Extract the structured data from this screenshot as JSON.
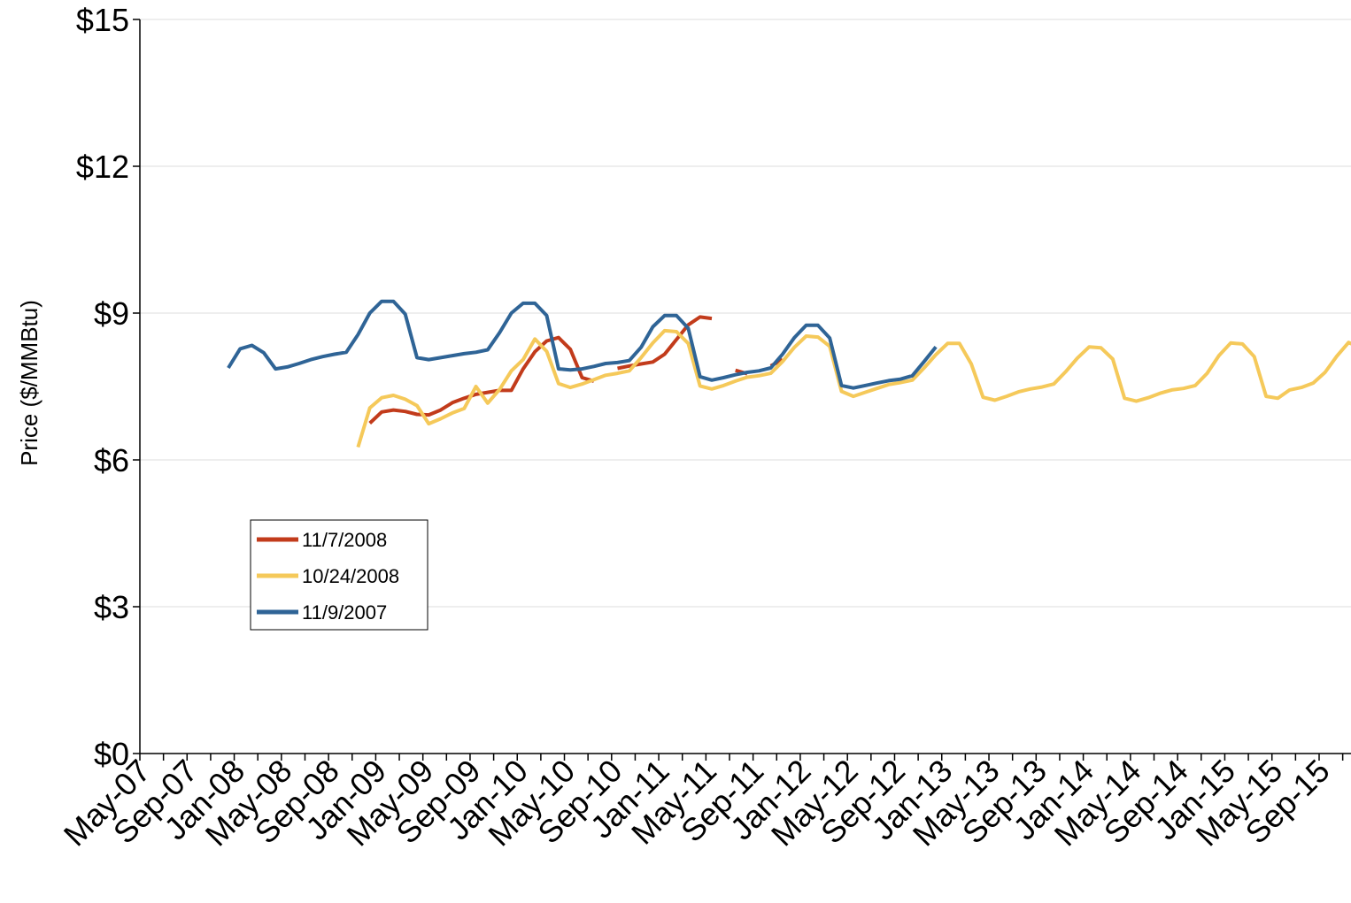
{
  "chart_data": {
    "type": "line",
    "ylabel": "Price ($/MMBtu)",
    "xlabel": "",
    "title": "",
    "ylim": [
      0,
      15
    ],
    "y_ticks": [
      "$0",
      "$3",
      "$6",
      "$9",
      "$12",
      "$15"
    ],
    "y_tick_values": [
      0,
      3,
      6,
      9,
      12,
      15
    ],
    "x_tick_labels": [
      "May-07",
      "Sep-07",
      "Jan-08",
      "May-08",
      "Sep-08",
      "Jan-09",
      "May-09",
      "Sep-09",
      "Jan-10",
      "May-10",
      "Sep-10",
      "Jan-11",
      "May-11",
      "Sep-11",
      "Jan-12",
      "May-12",
      "Sep-12",
      "Jan-13",
      "May-13",
      "Sep-13",
      "Jan-14",
      "May-14",
      "Sep-14",
      "Jan-15",
      "May-15",
      "Sep-15"
    ],
    "x_range": [
      "May-07",
      "Feb-16"
    ],
    "grid": "horizontal",
    "legend_position": "bottom-left",
    "legend": [
      "11/7/2008",
      "10/24/2008",
      "11/9/2007"
    ],
    "colors": {
      "11/7/2008": "#c23b1b",
      "10/24/2008": "#f5c95a",
      "11/9/2007": "#2f6496"
    },
    "series": [
      {
        "name": "11/7/2008",
        "color": "#c23b1b",
        "start": "Dec-08",
        "values": [
          6.75,
          6.98,
          7.02,
          6.99,
          6.93,
          6.92,
          7.02,
          7.17,
          7.26,
          7.34,
          7.38,
          7.42,
          7.42,
          7.86,
          8.21,
          8.43,
          8.5,
          8.26,
          7.68,
          7.61,
          null,
          7.87,
          7.92,
          7.96,
          8.0,
          8.16,
          8.46,
          8.76,
          8.92,
          8.89,
          null,
          7.83,
          7.76,
          null,
          7.92,
          8.05
        ]
      },
      {
        "name": "10/24/2008",
        "color": "#f5c95a",
        "start": "Nov-08",
        "values": [
          6.26,
          7.06,
          7.27,
          7.32,
          7.24,
          7.11,
          6.74,
          6.84,
          6.96,
          7.05,
          7.5,
          7.16,
          7.44,
          7.82,
          8.05,
          8.47,
          8.22,
          7.56,
          7.48,
          7.55,
          7.64,
          7.73,
          7.77,
          7.82,
          8.09,
          8.39,
          8.64,
          8.62,
          8.38,
          7.51,
          7.45,
          7.52,
          7.61,
          7.69,
          7.72,
          7.77,
          8.01,
          8.3,
          8.53,
          8.51,
          8.32,
          7.4,
          7.3,
          7.38,
          7.46,
          7.54,
          7.58,
          7.63,
          7.88,
          8.15,
          8.38,
          8.38,
          7.96,
          7.28,
          7.22,
          7.3,
          7.39,
          7.45,
          7.49,
          7.55,
          7.8,
          8.08,
          8.31,
          8.29,
          8.06,
          7.26,
          7.2,
          7.27,
          7.36,
          7.43,
          7.46,
          7.52,
          7.77,
          8.13,
          8.39,
          8.37,
          8.11,
          7.3,
          7.26,
          7.43,
          7.48,
          7.57,
          7.79,
          8.12,
          8.4,
          8.29
        ]
      },
      {
        "name": "11/9/2007",
        "color": "#2f6496",
        "start": "Dec-07",
        "values": [
          7.88,
          8.27,
          8.34,
          8.19,
          7.86,
          7.9,
          7.97,
          8.05,
          8.11,
          8.16,
          8.2,
          8.56,
          9.0,
          9.24,
          9.24,
          8.98,
          8.09,
          8.05,
          8.09,
          8.13,
          8.17,
          8.2,
          8.25,
          8.6,
          9.0,
          9.2,
          9.2,
          8.95,
          7.86,
          7.84,
          7.86,
          7.91,
          7.97,
          7.99,
          8.03,
          8.3,
          8.72,
          8.95,
          8.95,
          8.69,
          7.7,
          7.63,
          7.68,
          7.74,
          7.79,
          7.82,
          7.88,
          8.16,
          8.5,
          8.75,
          8.75,
          8.49,
          7.52,
          7.47,
          7.52,
          7.57,
          7.62,
          7.65,
          7.72,
          8.01,
          8.31
        ]
      }
    ]
  }
}
